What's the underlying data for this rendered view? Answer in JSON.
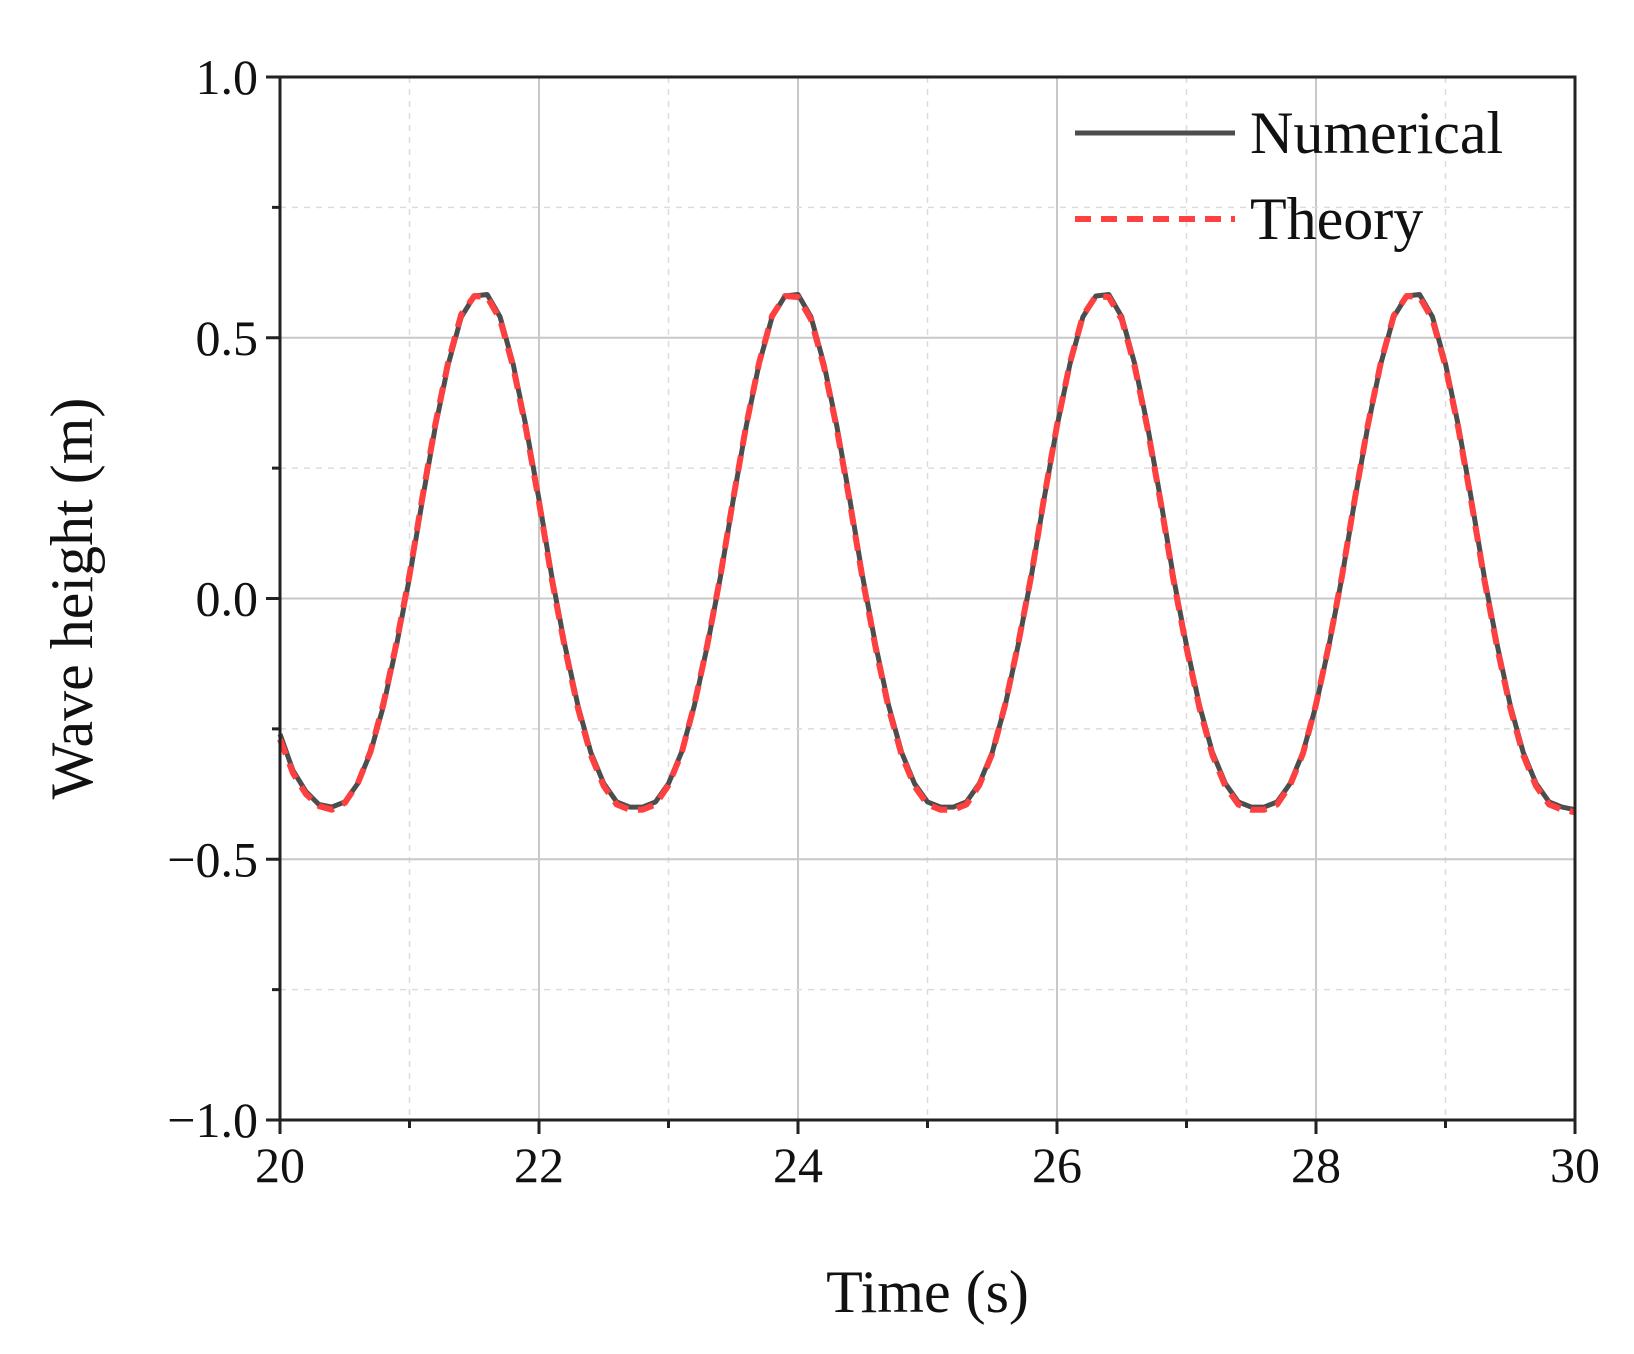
{
  "chart_data": {
    "type": "line",
    "title": "",
    "xlabel": "Time (s)",
    "ylabel": "Wave height (m)",
    "xlim": [
      20,
      30
    ],
    "ylim": [
      -1.0,
      1.0
    ],
    "xticks": [
      20,
      22,
      24,
      26,
      28,
      30
    ],
    "xtick_labels": [
      "20",
      "22",
      "24",
      "26",
      "28",
      "30"
    ],
    "yticks": [
      -1.0,
      -0.5,
      0.0,
      0.5,
      1.0
    ],
    "ytick_labels": [
      "−1.0",
      "−0.5",
      "0.0",
      "0.5",
      "1.0"
    ],
    "grid": true,
    "legend_position": "top-right",
    "series": [
      {
        "name": "Numerical",
        "style": "solid",
        "color": "#4d4d4d",
        "x": [
          20.0,
          20.1,
          20.2,
          20.3,
          20.4,
          20.5,
          20.6,
          20.7,
          20.8,
          20.9,
          21.0,
          21.1,
          21.2,
          21.3,
          21.4,
          21.5,
          21.6,
          21.7,
          21.8,
          21.9,
          22.0,
          22.1,
          22.2,
          22.3,
          22.4,
          22.5,
          22.6,
          22.7,
          22.8,
          22.9,
          23.0,
          23.1,
          23.2,
          23.3,
          23.4,
          23.5,
          23.6,
          23.7,
          23.8,
          23.9,
          24.0,
          24.1,
          24.2,
          24.3,
          24.4,
          24.5,
          24.6,
          24.7,
          24.8,
          24.9,
          25.0,
          25.1,
          25.2,
          25.3,
          25.4,
          25.5,
          25.6,
          25.7,
          25.8,
          25.9,
          26.0,
          26.1,
          26.2,
          26.3,
          26.4,
          26.5,
          26.6,
          26.7,
          26.8,
          26.9,
          27.0,
          27.1,
          27.2,
          27.3,
          27.4,
          27.5,
          27.6,
          27.7,
          27.8,
          27.9,
          28.0,
          28.1,
          28.2,
          28.3,
          28.4,
          28.5,
          28.6,
          28.7,
          28.8,
          28.9,
          29.0,
          29.1,
          29.2,
          29.3,
          29.4,
          29.5,
          29.6,
          29.7,
          29.8,
          29.9,
          30.0
        ],
        "y": [
          -0.26,
          -0.33,
          -0.37,
          -0.395,
          -0.4,
          -0.39,
          -0.355,
          -0.295,
          -0.205,
          -0.09,
          0.04,
          0.19,
          0.33,
          0.45,
          0.54,
          0.58,
          0.583,
          0.54,
          0.45,
          0.33,
          0.19,
          0.04,
          -0.09,
          -0.205,
          -0.295,
          -0.355,
          -0.39,
          -0.4,
          -0.4,
          -0.39,
          -0.355,
          -0.295,
          -0.205,
          -0.09,
          0.04,
          0.19,
          0.33,
          0.45,
          0.54,
          0.58,
          0.583,
          0.54,
          0.45,
          0.33,
          0.19,
          0.04,
          -0.09,
          -0.205,
          -0.295,
          -0.355,
          -0.39,
          -0.4,
          -0.4,
          -0.39,
          -0.355,
          -0.295,
          -0.205,
          -0.09,
          0.04,
          0.19,
          0.33,
          0.45,
          0.54,
          0.58,
          0.583,
          0.54,
          0.45,
          0.33,
          0.19,
          0.04,
          -0.09,
          -0.205,
          -0.295,
          -0.355,
          -0.39,
          -0.4,
          -0.4,
          -0.39,
          -0.355,
          -0.295,
          -0.205,
          -0.09,
          0.04,
          0.19,
          0.33,
          0.45,
          0.54,
          0.58,
          0.583,
          0.54,
          0.45,
          0.33,
          0.19,
          0.04,
          -0.09,
          -0.205,
          -0.295,
          -0.355,
          -0.39,
          -0.4,
          -0.405
        ]
      },
      {
        "name": "Theory",
        "style": "dashed",
        "color": "#ff4040",
        "x": [
          20.0,
          20.1,
          20.2,
          20.3,
          20.4,
          20.5,
          20.6,
          20.7,
          20.8,
          20.9,
          21.0,
          21.1,
          21.2,
          21.3,
          21.4,
          21.5,
          21.6,
          21.7,
          21.8,
          21.9,
          22.0,
          22.1,
          22.2,
          22.3,
          22.4,
          22.5,
          22.6,
          22.7,
          22.8,
          22.9,
          23.0,
          23.1,
          23.2,
          23.3,
          23.4,
          23.5,
          23.6,
          23.7,
          23.8,
          23.9,
          24.0,
          24.1,
          24.2,
          24.3,
          24.4,
          24.5,
          24.6,
          24.7,
          24.8,
          24.9,
          25.0,
          25.1,
          25.2,
          25.3,
          25.4,
          25.5,
          25.6,
          25.7,
          25.8,
          25.9,
          26.0,
          26.1,
          26.2,
          26.3,
          26.4,
          26.5,
          26.6,
          26.7,
          26.8,
          26.9,
          27.0,
          27.1,
          27.2,
          27.3,
          27.4,
          27.5,
          27.6,
          27.7,
          27.8,
          27.9,
          28.0,
          28.1,
          28.2,
          28.3,
          28.4,
          28.5,
          28.6,
          28.7,
          28.8,
          28.9,
          29.0,
          29.1,
          29.2,
          29.3,
          29.4,
          29.5,
          29.6,
          29.7,
          29.8,
          29.9,
          30.0
        ],
        "y": [
          -0.27,
          -0.335,
          -0.375,
          -0.398,
          -0.405,
          -0.392,
          -0.355,
          -0.293,
          -0.2,
          -0.085,
          0.045,
          0.195,
          0.335,
          0.455,
          0.545,
          0.58,
          0.578,
          0.535,
          0.445,
          0.325,
          0.185,
          0.035,
          -0.095,
          -0.21,
          -0.3,
          -0.36,
          -0.395,
          -0.405,
          -0.405,
          -0.395,
          -0.358,
          -0.297,
          -0.203,
          -0.088,
          0.042,
          0.192,
          0.332,
          0.452,
          0.542,
          0.58,
          0.578,
          0.535,
          0.445,
          0.325,
          0.185,
          0.035,
          -0.095,
          -0.21,
          -0.3,
          -0.36,
          -0.395,
          -0.405,
          -0.405,
          -0.395,
          -0.358,
          -0.297,
          -0.203,
          -0.088,
          0.042,
          0.192,
          0.332,
          0.452,
          0.542,
          0.58,
          0.578,
          0.535,
          0.445,
          0.325,
          0.185,
          0.035,
          -0.095,
          -0.21,
          -0.3,
          -0.36,
          -0.395,
          -0.405,
          -0.405,
          -0.395,
          -0.358,
          -0.297,
          -0.203,
          -0.088,
          0.042,
          0.192,
          0.332,
          0.452,
          0.542,
          0.58,
          0.578,
          0.535,
          0.445,
          0.325,
          0.185,
          0.035,
          -0.095,
          -0.21,
          -0.3,
          -0.36,
          -0.395,
          -0.405,
          -0.41
        ]
      }
    ]
  }
}
